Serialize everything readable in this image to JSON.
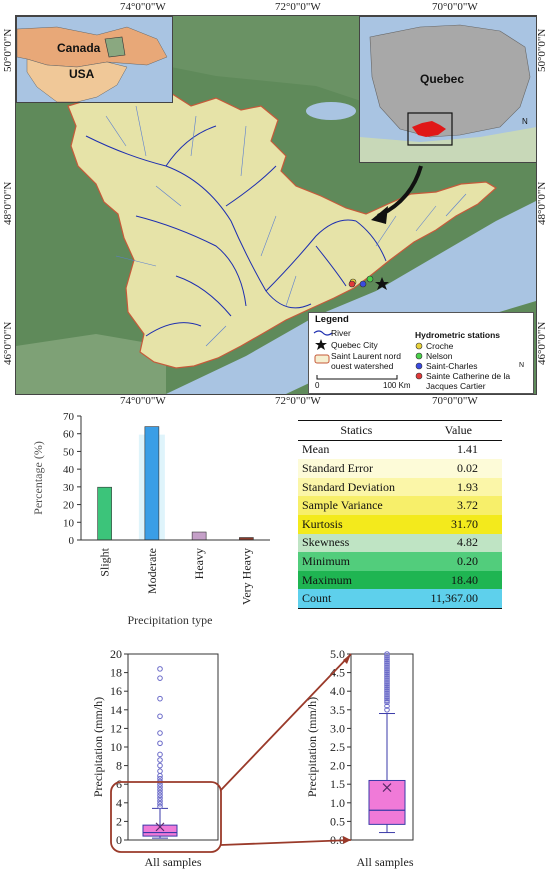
{
  "map": {
    "coords_top": [
      "74°0\"0\"W",
      "72°0\"0\"W",
      "70°0\"0\"W"
    ],
    "coords_bottom": [
      "74°0\"0\"W",
      "72°0\"0\"W",
      "70°0\"0\"W"
    ],
    "coords_left": [
      "50°0\"0\"N",
      "48°0\"0\"N",
      "46°0\"0\"N"
    ],
    "coords_right": [
      "50°0\"0\"N",
      "48°0\"0\"N",
      "46°0\"0\"N"
    ],
    "inset_left": {
      "country1": "Canada",
      "country2": "USA"
    },
    "inset_right": {
      "region": "Quebec"
    },
    "north": "N",
    "legend": {
      "title": "Legend",
      "items_left": [
        "River",
        "Quebec City",
        "Saint Laurent nord ouest watershed"
      ],
      "stations_title": "Hydrometric stations",
      "stations": [
        "Croche",
        "Nelson",
        "Saint-Charles",
        "Sainte Catherine de la Jacques Cartier"
      ],
      "scale_start": "0",
      "scale_end": "100 Km"
    },
    "colors": {
      "watershed": "#e6e3a8",
      "river": "#1e2fb0",
      "water": "#a9c4e2",
      "land": "#5f8a5a"
    }
  },
  "bar_chart": {
    "chart_data": {
      "type": "bar",
      "categories": [
        "Slight",
        "Moderate",
        "Heavy",
        "Very Heavy"
      ],
      "values": [
        29.8,
        64.0,
        4.5,
        1.4
      ],
      "colors": [
        "#3cc47a",
        "#3a9ee6",
        "#c5a0c8",
        "#8b3a2a"
      ],
      "xlabel": "Precipitation type",
      "ylabel": "Percentage (%)",
      "ylim": [
        0,
        70
      ],
      "yticks": [
        "0",
        "10",
        "20",
        "30",
        "40",
        "50",
        "60",
        "70"
      ]
    }
  },
  "stats_table": {
    "header": [
      "Statics",
      "Value"
    ],
    "rows": [
      {
        "label": "Mean",
        "value": "1.41",
        "color": "#ffffff"
      },
      {
        "label": "Standard Error",
        "value": "0.02",
        "color": "#fdfbd8"
      },
      {
        "label": "Standard Deviation",
        "value": "1.93",
        "color": "#fbf6a8"
      },
      {
        "label": "Sample Variance",
        "value": "3.72",
        "color": "#f7ef6a"
      },
      {
        "label": "Kurtosis",
        "value": "31.70",
        "color": "#f3ea1c"
      },
      {
        "label": "Skewness",
        "value": "4.82",
        "color": "#bfe4c4"
      },
      {
        "label": "Minimum",
        "value": "0.20",
        "color": "#52cd7c"
      },
      {
        "label": "Maximum",
        "value": "18.40",
        "color": "#1fb552"
      },
      {
        "label": "Count",
        "value": "11,367.00",
        "color": "#5ed0ec"
      }
    ]
  },
  "boxplots": {
    "chart_data": [
      {
        "type": "box",
        "xlabel": "All samples",
        "ylabel": "Precipitation (mm/h)",
        "ylim": [
          0,
          20
        ],
        "yticks": [
          "0",
          "2",
          "4",
          "6",
          "8",
          "10",
          "12",
          "14",
          "16",
          "18",
          "20"
        ],
        "q1": 0.42,
        "median": 0.8,
        "q3": 1.6,
        "mean": 1.41,
        "whisker_low": 0.2,
        "whisker_high": 3.4,
        "outliers": [
          3.6,
          3.9,
          4.2,
          4.5,
          4.8,
          5.1,
          5.4,
          5.7,
          6.0,
          6.3,
          6.6,
          6.9,
          7.4,
          8.0,
          8.6,
          9.2,
          10.4,
          11.5,
          13.3,
          15.2,
          17.4,
          18.4
        ]
      },
      {
        "type": "box",
        "xlabel": "All samples",
        "ylabel": "Precipitation (mm/h)",
        "ylim": [
          0,
          5
        ],
        "yticks": [
          "0.0",
          "0.5",
          "1.0",
          "1.5",
          "2.0",
          "2.5",
          "3.0",
          "3.5",
          "4.0",
          "4.5",
          "5.0"
        ],
        "q1": 0.42,
        "median": 0.8,
        "q3": 1.6,
        "mean": 1.41,
        "whisker_low": 0.2,
        "whisker_high": 3.4,
        "outliers": [
          3.5,
          3.6,
          3.7,
          3.75,
          3.8,
          3.85,
          3.9,
          3.95,
          4.0,
          4.05,
          4.1,
          4.15,
          4.2,
          4.25,
          4.3,
          4.35,
          4.4,
          4.45,
          4.5,
          4.55,
          4.6,
          4.65,
          4.7,
          4.75,
          4.8,
          4.85,
          4.9,
          4.95,
          5.0
        ]
      }
    ],
    "colors": {
      "box": "#f07ad8",
      "outline": "#3a3aa8",
      "outlier": "#6a6ac8",
      "zoom": "#9a3a2a"
    }
  }
}
